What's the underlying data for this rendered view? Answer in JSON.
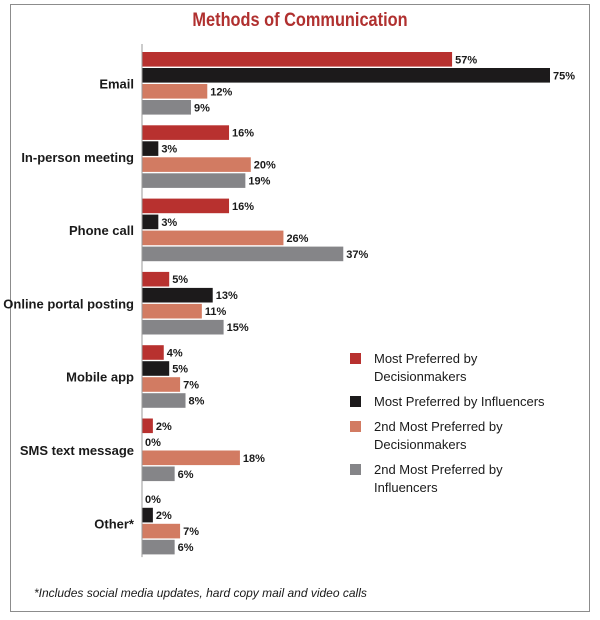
{
  "chart_data": {
    "type": "bar",
    "orientation": "horizontal",
    "title": "Methods of Communication",
    "categories": [
      "Email",
      "In-person meeting",
      "Phone call",
      "Online portal posting",
      "Mobile app",
      "SMS text message",
      "Other*"
    ],
    "series": [
      {
        "name": "Most Preferred by Decisionmakers",
        "color": "#b8312f",
        "values": [
          57,
          16,
          16,
          5,
          4,
          2,
          0
        ],
        "labels": [
          "57%",
          "16%",
          "16%",
          "5%",
          "4%",
          "2%",
          "0%"
        ]
      },
      {
        "name": "Most Preferred by Influencers",
        "color": "#1c1a1b",
        "values": [
          75,
          3,
          3,
          13,
          5,
          0,
          2
        ],
        "labels": [
          "75%",
          "3%",
          "3%",
          "13%",
          "5%",
          "0%",
          "2%"
        ]
      },
      {
        "name": "2nd Most Preferred by Decisionmakers",
        "color": "#d27b62",
        "values": [
          12,
          20,
          26,
          11,
          7,
          18,
          7
        ],
        "labels": [
          "12%",
          "20%",
          "26%",
          "11%",
          "7%",
          "18%",
          "7%"
        ]
      },
      {
        "name": "2nd Most Preferred by Influencers",
        "color": "#858588",
        "values": [
          9,
          19,
          37,
          15,
          8,
          6,
          6
        ],
        "labels": [
          "9%",
          "19%",
          "37%",
          "15%",
          "8%",
          "6%",
          "6%"
        ]
      }
    ],
    "xlim": [
      0,
      75
    ],
    "grid": false,
    "legend_position": "right",
    "footnote": "*Includes social media updates, hard copy mail and video calls"
  }
}
